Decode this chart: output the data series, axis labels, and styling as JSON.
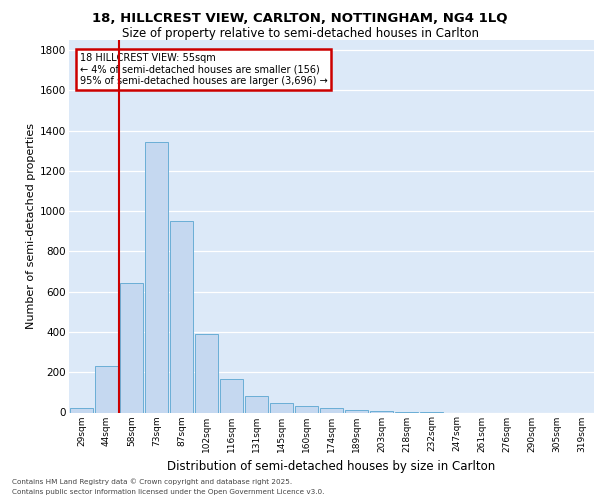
{
  "title_line1": "18, HILLCREST VIEW, CARLTON, NOTTINGHAM, NG4 1LQ",
  "title_line2": "Size of property relative to semi-detached houses in Carlton",
  "xlabel": "Distribution of semi-detached houses by size in Carlton",
  "ylabel": "Number of semi-detached properties",
  "categories": [
    "29sqm",
    "44sqm",
    "58sqm",
    "73sqm",
    "87sqm",
    "102sqm",
    "116sqm",
    "131sqm",
    "145sqm",
    "160sqm",
    "174sqm",
    "189sqm",
    "203sqm",
    "218sqm",
    "232sqm",
    "247sqm",
    "261sqm",
    "276sqm",
    "290sqm",
    "305sqm",
    "319sqm"
  ],
  "values": [
    20,
    230,
    645,
    1345,
    950,
    390,
    165,
    80,
    45,
    30,
    20,
    10,
    5,
    2,
    1,
    0,
    0,
    0,
    0,
    0,
    0
  ],
  "bar_color": "#c5d8f0",
  "bar_edge_color": "#6aaed6",
  "vline_color": "#cc0000",
  "vline_x": 1.5,
  "annotation_text": "18 HILLCREST VIEW: 55sqm\n← 4% of semi-detached houses are smaller (156)\n95% of semi-detached houses are larger (3,696) →",
  "annotation_box_color": "#cc0000",
  "background_color": "#dce9f8",
  "grid_color": "#ffffff",
  "ylim": [
    0,
    1850
  ],
  "yticks": [
    0,
    200,
    400,
    600,
    800,
    1000,
    1200,
    1400,
    1600,
    1800
  ],
  "footer_line1": "Contains HM Land Registry data © Crown copyright and database right 2025.",
  "footer_line2": "Contains public sector information licensed under the Open Government Licence v3.0."
}
